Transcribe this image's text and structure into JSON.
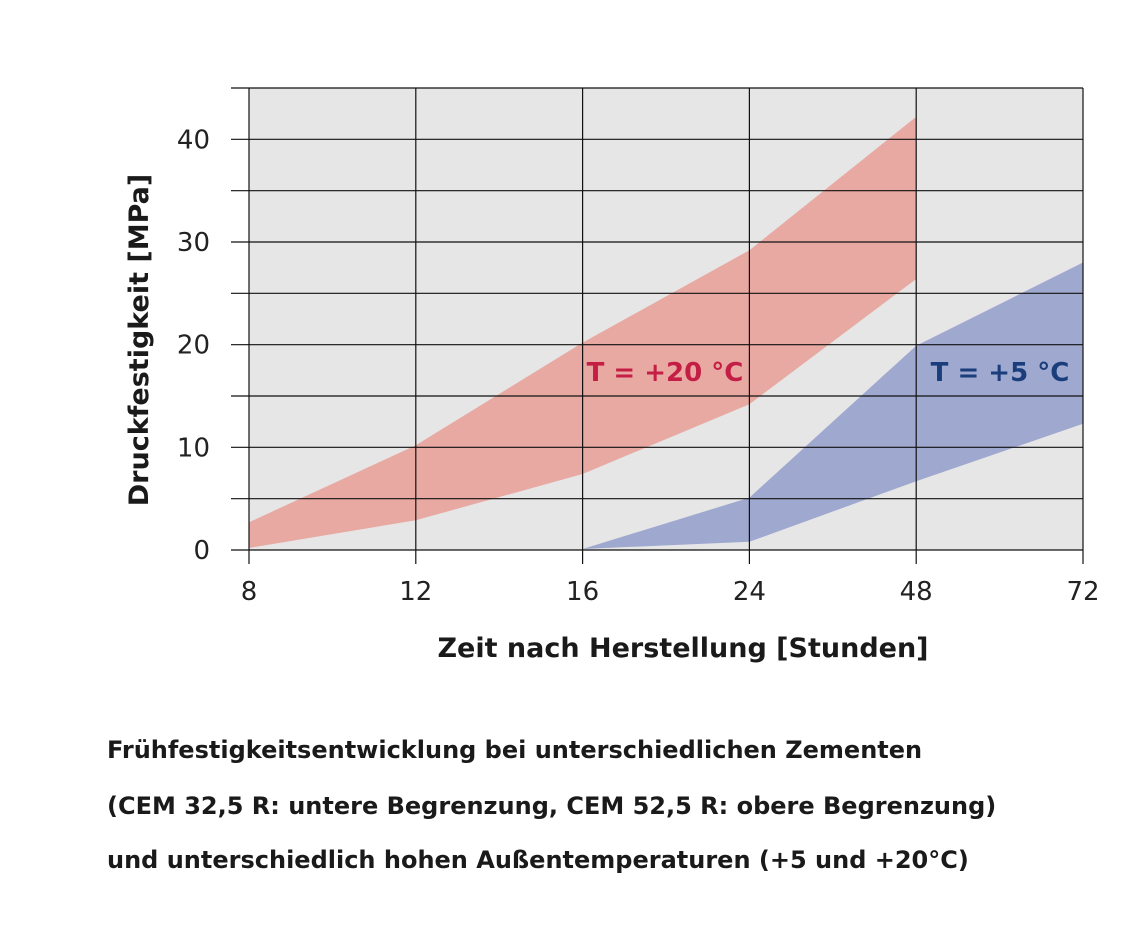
{
  "chart_data": {
    "type": "area",
    "xlabel": "Zeit nach Herstellung [Stunden]",
    "ylabel": "Druckfestigkeit [MPa]",
    "x_categories": [
      "8",
      "12",
      "16",
      "24",
      "48",
      "72"
    ],
    "y_ticks": [
      "0",
      "10",
      "20",
      "30",
      "40"
    ],
    "ylim": [
      0,
      45
    ],
    "grid": true,
    "series": [
      {
        "name": "T = +20 °C",
        "color": "#e8a9a3",
        "label_color": "#c41e45",
        "upper": [
          [
            8,
            2.7
          ],
          [
            12,
            10.2
          ],
          [
            16,
            20.2
          ],
          [
            24,
            29.2
          ],
          [
            48,
            42.2
          ]
        ],
        "lower": [
          [
            8,
            0.2
          ],
          [
            12,
            2.9
          ],
          [
            16,
            7.4
          ],
          [
            24,
            14.2
          ],
          [
            48,
            26.4
          ]
        ]
      },
      {
        "name": "T = +5 °C",
        "color": "#9fa8cf",
        "label_color": "#1a3d7c",
        "upper": [
          [
            16,
            0.1
          ],
          [
            24,
            5.1
          ],
          [
            48,
            19.9
          ],
          [
            72,
            28.0
          ]
        ],
        "lower": [
          [
            16,
            0.1
          ],
          [
            24,
            0.8
          ],
          [
            48,
            6.7
          ],
          [
            72,
            12.3
          ]
        ]
      }
    ]
  },
  "caption": {
    "line1": "Frühfestigkeitsentwicklung bei unterschiedlichen Zementen",
    "line2": "(CEM 32,5 R:  untere Begrenzung,  CEM 52,5 R: obere Begrenzung)",
    "line3": "und unterschiedlich hohen Außentemperaturen (+5 und +20°C)"
  }
}
